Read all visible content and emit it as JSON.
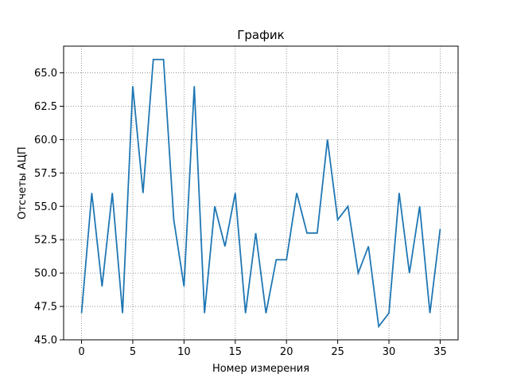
{
  "chart_data": {
    "type": "line",
    "title": "График",
    "xlabel": "Номер измерения",
    "ylabel": "Отсчеты АЦП",
    "xlim": [
      -1.75,
      36.75
    ],
    "ylim": [
      45.0,
      67.0
    ],
    "xticks": [
      0,
      5,
      10,
      15,
      20,
      25,
      30,
      35
    ],
    "xtick_labels": [
      "0",
      "5",
      "10",
      "15",
      "20",
      "25",
      "30",
      "35"
    ],
    "yticks": [
      45.0,
      47.5,
      50.0,
      52.5,
      55.0,
      57.5,
      60.0,
      62.5,
      65.0
    ],
    "ytick_labels": [
      "45.0",
      "47.5",
      "50.0",
      "52.5",
      "55.0",
      "57.5",
      "60.0",
      "62.5",
      "65.0"
    ],
    "grid": true,
    "grid_style": "dotted",
    "series": [
      {
        "color": "#1f77b4",
        "x": [
          0,
          1,
          2,
          3,
          4,
          5,
          6,
          7,
          8,
          9,
          10,
          11,
          12,
          13,
          14,
          15,
          16,
          17,
          18,
          19,
          20,
          21,
          22,
          23,
          24,
          25,
          26,
          27,
          28,
          29,
          30,
          31,
          32,
          33,
          34,
          35
        ],
        "values": [
          47,
          56,
          49,
          56,
          47,
          64,
          56,
          66,
          66,
          54,
          49,
          64,
          47,
          55,
          52,
          56,
          47,
          53,
          47,
          51,
          51,
          56,
          53,
          53,
          60,
          54,
          55,
          50,
          52,
          46,
          47,
          56,
          50,
          55,
          47,
          53.3
        ]
      }
    ]
  }
}
